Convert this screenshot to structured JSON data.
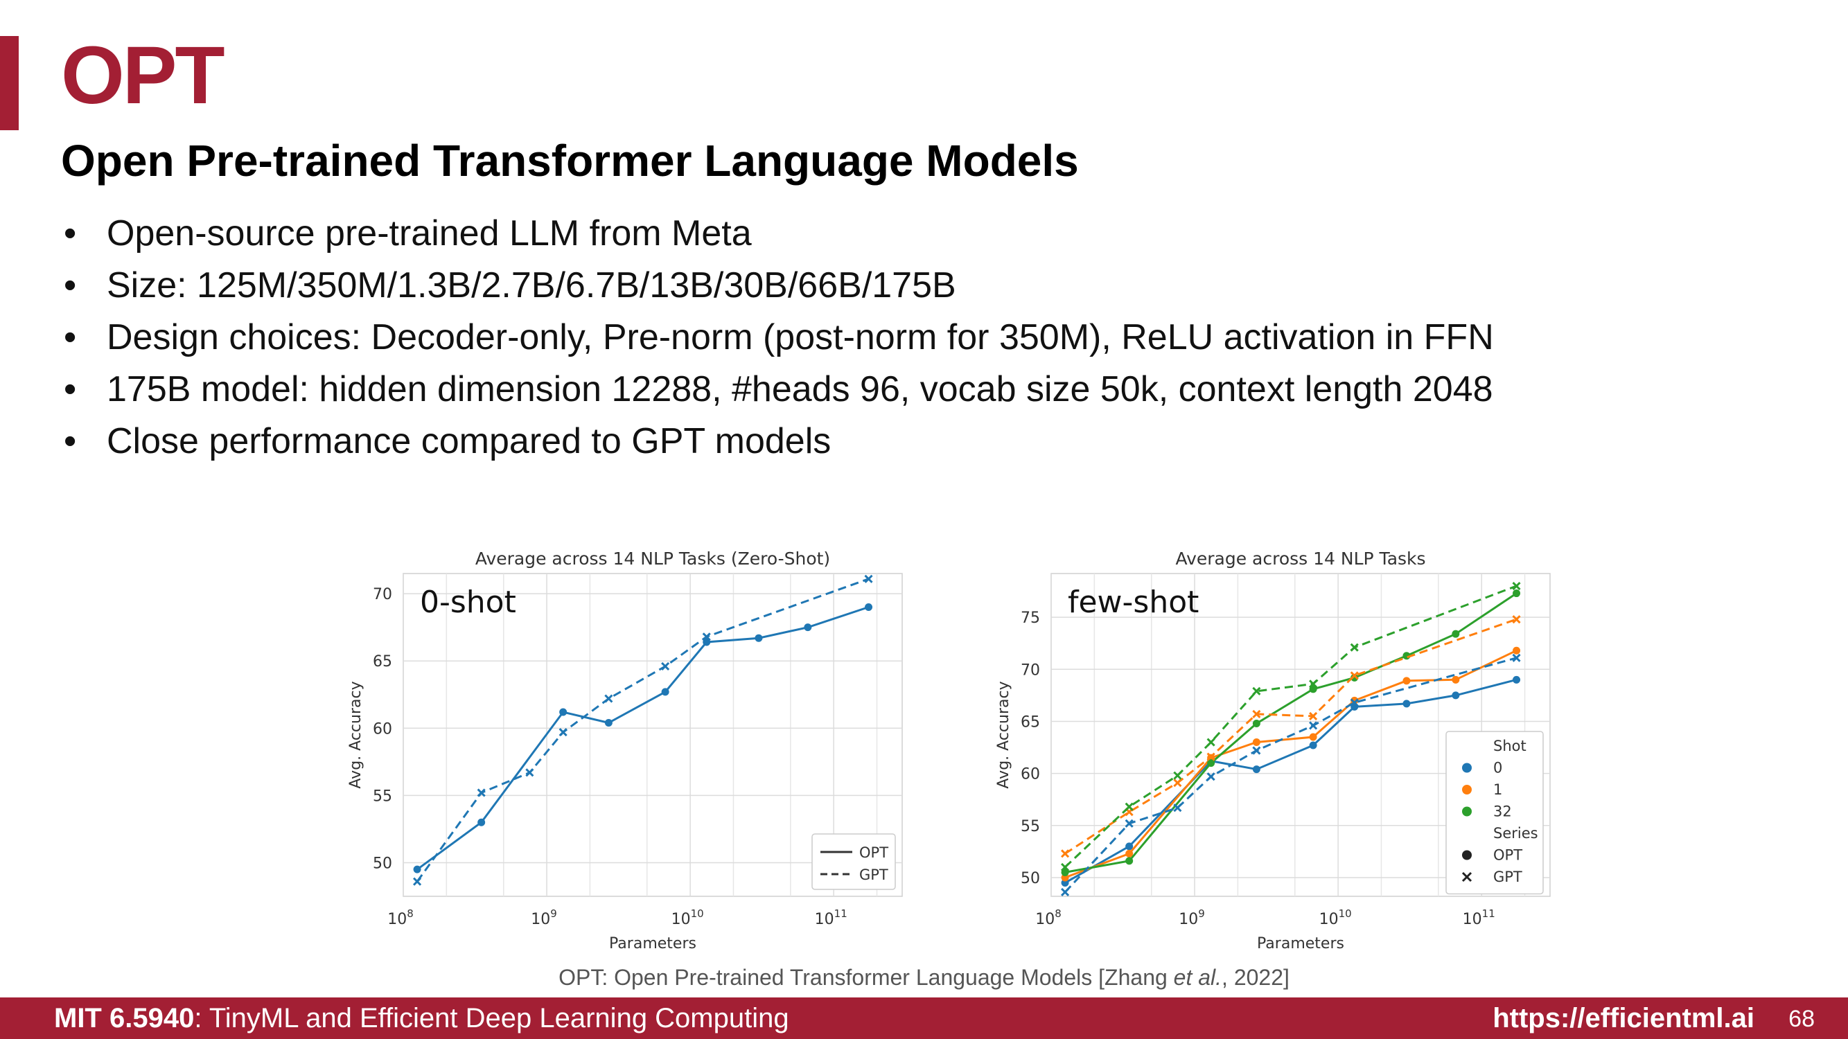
{
  "slide": {
    "title": "OPT",
    "subtitle": "Open Pre-trained Transformer Language Models",
    "bullets": [
      "Open-source pre-trained LLM from Meta",
      "Size: 125M/350M/1.3B/2.7B/6.7B/13B/30B/66B/175B",
      "Design choices: Decoder-only, Pre-norm (post-norm for 350M), ReLU activation in FFN",
      "175B model: hidden dimension 12288, #heads 96, vocab size 50k, context length 2048",
      "Close performance compared to GPT models"
    ],
    "bullet_glyph": "•",
    "citation_prefix": "OPT: Open Pre-trained Transformer Language Models [Zhang ",
    "citation_italic": "et al.",
    "citation_suffix": ", 2022]"
  },
  "footer": {
    "course_code": "MIT 6.5940",
    "course_title": ": TinyML and Efficient Deep Learning Computing",
    "url": "https://efficientml.ai",
    "page": "68"
  },
  "colors": {
    "accent": "#a31f34",
    "shot0": "#1f77b4",
    "shot1": "#ff7f0e",
    "shot32": "#2ca02c"
  },
  "chart_data": [
    {
      "type": "line",
      "title": "Average across 14 NLP Tasks (Zero-Shot)",
      "annotation": "0-shot",
      "xlabel": "Parameters",
      "ylabel": "Avg. Accuracy",
      "xscale": "log",
      "xlim": [
        100000000,
        300000000000
      ],
      "ylim": [
        47.5,
        71.5
      ],
      "xticks": [
        100000000,
        1000000000,
        10000000000,
        100000000000
      ],
      "xtick_labels": [
        [
          "10",
          "8"
        ],
        [
          "10",
          "9"
        ],
        [
          "10",
          "10"
        ],
        [
          "10",
          "11"
        ]
      ],
      "yticks": [
        50,
        55,
        60,
        65,
        70
      ],
      "grid": true,
      "legend": {
        "placement": "bottom-right",
        "entries": [
          "OPT",
          "GPT"
        ]
      },
      "series": [
        {
          "name": "OPT",
          "style": "solid",
          "marker": "circle",
          "color": "#1f77b4",
          "x": [
            125000000,
            350000000,
            1300000000,
            2700000000,
            6700000000,
            13000000000,
            30000000000,
            66000000000,
            175000000000
          ],
          "y": [
            49.5,
            53.0,
            61.2,
            60.4,
            62.7,
            66.4,
            66.7,
            67.5,
            69.0
          ]
        },
        {
          "name": "GPT",
          "style": "dashed",
          "marker": "x",
          "color": "#1f77b4",
          "x": [
            125000000,
            350000000,
            760000000,
            1300000000,
            2700000000,
            6700000000,
            13000000000,
            175000000000
          ],
          "y": [
            48.6,
            55.2,
            56.7,
            59.7,
            62.2,
            64.6,
            66.8,
            71.1
          ]
        }
      ]
    },
    {
      "type": "line",
      "title": "Average across 14 NLP Tasks",
      "annotation": "few-shot",
      "xlabel": "Parameters",
      "ylabel": "Avg. Accuracy",
      "xscale": "log",
      "xlim": [
        100000000,
        300000000000
      ],
      "ylim": [
        48.2,
        79.2
      ],
      "xticks": [
        100000000,
        1000000000,
        10000000000,
        100000000000
      ],
      "xtick_labels": [
        [
          "10",
          "8"
        ],
        [
          "10",
          "9"
        ],
        [
          "10",
          "10"
        ],
        [
          "10",
          "11"
        ]
      ],
      "yticks": [
        50,
        55,
        60,
        65,
        70,
        75
      ],
      "grid": true,
      "legend": {
        "placement": "center-right",
        "shot_title": "Shot",
        "shots": [
          {
            "label": "0",
            "color": "#1f77b4"
          },
          {
            "label": "1",
            "color": "#ff7f0e"
          },
          {
            "label": "32",
            "color": "#2ca02c"
          }
        ],
        "series_title": "Series",
        "series_entries": [
          {
            "label": "OPT",
            "marker": "circle"
          },
          {
            "label": "GPT",
            "marker": "x"
          }
        ]
      },
      "series": [
        {
          "shot": "0",
          "model": "OPT",
          "style": "solid",
          "marker": "circle",
          "color": "#1f77b4",
          "x": [
            125000000,
            350000000,
            1300000000,
            2700000000,
            6700000000,
            13000000000,
            30000000000,
            66000000000,
            175000000000
          ],
          "y": [
            49.5,
            53.0,
            61.2,
            60.4,
            62.7,
            66.4,
            66.7,
            67.5,
            69.0
          ]
        },
        {
          "shot": "1",
          "model": "OPT",
          "style": "solid",
          "marker": "circle",
          "color": "#ff7f0e",
          "x": [
            125000000,
            350000000,
            1300000000,
            2700000000,
            6700000000,
            13000000000,
            30000000000,
            66000000000,
            175000000000
          ],
          "y": [
            50.0,
            52.3,
            61.5,
            63.0,
            63.5,
            67.0,
            68.9,
            69.0,
            71.8
          ]
        },
        {
          "shot": "32",
          "model": "OPT",
          "style": "solid",
          "marker": "circle",
          "color": "#2ca02c",
          "x": [
            125000000,
            350000000,
            1300000000,
            2700000000,
            6700000000,
            13000000000,
            30000000000,
            66000000000,
            175000000000
          ],
          "y": [
            50.5,
            51.6,
            61.0,
            64.8,
            68.1,
            69.2,
            71.3,
            73.4,
            77.3
          ]
        },
        {
          "shot": "0",
          "model": "GPT",
          "style": "dashed",
          "marker": "x",
          "color": "#1f77b4",
          "x": [
            125000000,
            350000000,
            760000000,
            1300000000,
            2700000000,
            6700000000,
            13000000000,
            175000000000
          ],
          "y": [
            48.6,
            55.2,
            56.7,
            59.7,
            62.2,
            64.6,
            66.8,
            71.1
          ]
        },
        {
          "shot": "1",
          "model": "GPT",
          "style": "dashed",
          "marker": "x",
          "color": "#ff7f0e",
          "x": [
            125000000,
            350000000,
            760000000,
            1300000000,
            2700000000,
            6700000000,
            13000000000,
            175000000000
          ],
          "y": [
            52.3,
            56.3,
            59.1,
            61.6,
            65.7,
            65.5,
            69.4,
            74.8
          ]
        },
        {
          "shot": "32",
          "model": "GPT",
          "style": "dashed",
          "marker": "x",
          "color": "#2ca02c",
          "x": [
            125000000,
            350000000,
            760000000,
            1300000000,
            2700000000,
            6700000000,
            13000000000,
            175000000000
          ],
          "y": [
            51.0,
            56.8,
            59.8,
            63.0,
            67.9,
            68.6,
            72.1,
            78.0
          ]
        }
      ]
    }
  ]
}
